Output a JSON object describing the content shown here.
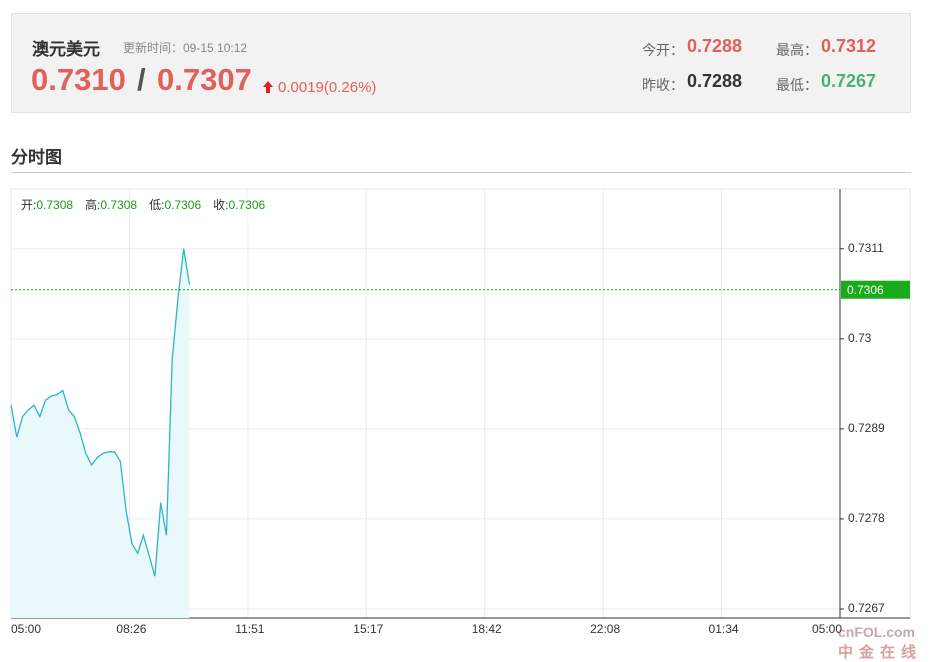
{
  "header": {
    "title": "澳元美元",
    "update_time": "更新时间：09-15 10:12",
    "bid": "0.7310",
    "separator": "/",
    "ask": "0.7307",
    "change": "0.0019(0.26%)",
    "stats": [
      {
        "label": "今开：",
        "value": "0.7288"
      },
      {
        "label": "最高：",
        "value": "0.7312"
      },
      {
        "label": "昨收：",
        "value": "0.7288"
      },
      {
        "label": "最低：",
        "value": "0.7267"
      }
    ]
  },
  "section_title": "分时图",
  "chart_data": {
    "type": "line",
    "ohlc": [
      {
        "label": "开:",
        "value": "0.7308"
      },
      {
        "label": "高:",
        "value": "0.7308"
      },
      {
        "label": "低:",
        "value": "0.7306"
      },
      {
        "label": "收:",
        "value": "0.7306"
      }
    ],
    "x": [
      "05:00",
      "05:10",
      "05:20",
      "05:30",
      "05:40",
      "05:50",
      "06:00",
      "06:10",
      "06:20",
      "06:30",
      "06:40",
      "06:50",
      "07:00",
      "07:10",
      "07:20",
      "07:30",
      "07:40",
      "07:50",
      "08:00",
      "08:10",
      "08:20",
      "08:30",
      "08:40",
      "08:50",
      "09:00",
      "09:10",
      "09:20",
      "09:30",
      "09:40",
      "09:50",
      "10:00",
      "10:10"
    ],
    "values": [
      0.72919,
      0.7288,
      0.72905,
      0.72913,
      0.72919,
      0.72905,
      0.72925,
      0.7293,
      0.72932,
      0.72937,
      0.72913,
      0.72905,
      0.72885,
      0.7286,
      0.72846,
      0.72855,
      0.7286,
      0.72862,
      0.72862,
      0.7285,
      0.7279,
      0.7275,
      0.72738,
      0.7276,
      0.72735,
      0.7271,
      0.728,
      0.7276,
      0.72975,
      0.7305,
      0.7311,
      0.73066
    ],
    "color": "#2bb5c8",
    "area_color": "#e8f8fb",
    "last_price": 0.7306,
    "last_color": "#1aab1a",
    "ylim": [
      0.72659,
      0.73183
    ],
    "yticks": [
      0.7267,
      0.7278,
      0.7289,
      0.73,
      0.7311
    ],
    "xticks": [
      "05:00",
      "08:26",
      "11:51",
      "15:17",
      "18:42",
      "22:08",
      "01:34",
      "05:00"
    ],
    "grid": true
  },
  "watermark": [
    "cnFOL.com",
    "中金在线"
  ]
}
